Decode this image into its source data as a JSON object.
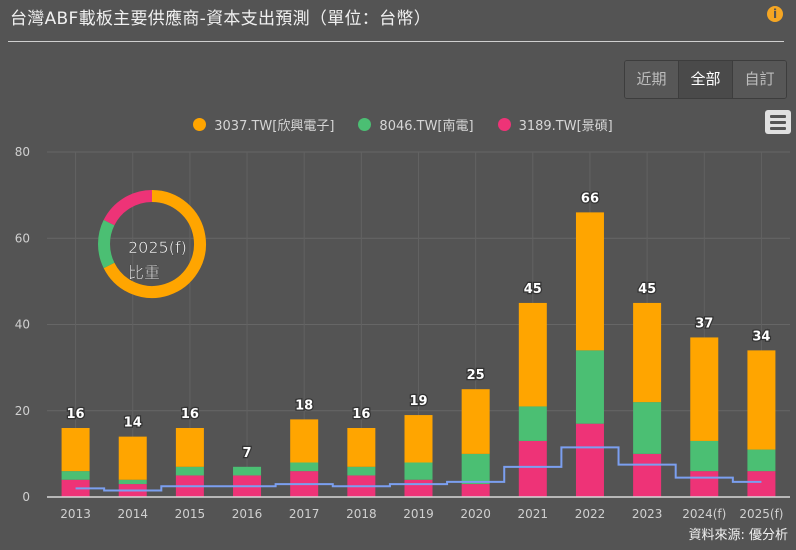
{
  "header": {
    "title": "台灣ABF載板主要供應商-資本支出預測（單位：台幣）",
    "info_icon": "info-icon"
  },
  "range_selector": {
    "buttons": [
      {
        "label": "近期",
        "active": false
      },
      {
        "label": "全部",
        "active": true
      },
      {
        "label": "自訂",
        "active": false
      }
    ]
  },
  "menu_icon": "hamburger-menu-icon",
  "source": "資料來源: 優分析",
  "colors": {
    "orange": "#FFA500",
    "green": "#4BBF73",
    "pink": "#EE3377",
    "line": "#7B9FF0"
  },
  "chart_data": {
    "type": "bar",
    "stacked": true,
    "title": "台灣ABF載板主要供應商-資本支出預測（單位：台幣）",
    "xlabel": "",
    "ylabel": "",
    "ylim": [
      0,
      80
    ],
    "yticks": [
      0,
      20,
      40,
      60,
      80
    ],
    "grid": true,
    "legend_position": "top-center",
    "categories": [
      "2013",
      "2014",
      "2015",
      "2016",
      "2017",
      "2018",
      "2019",
      "2020",
      "2021",
      "2022",
      "2023",
      "2024(f)",
      "2025(f)"
    ],
    "series": [
      {
        "name": "3189.TW[景碩]",
        "color": "#EE3377",
        "values": [
          4,
          3,
          5,
          5,
          6,
          5,
          4,
          3,
          13,
          17,
          10,
          6,
          6
        ]
      },
      {
        "name": "8046.TW[南電]",
        "color": "#4BBF73",
        "values": [
          2,
          1,
          2,
          2,
          2,
          2,
          4,
          7,
          8,
          17,
          12,
          7,
          5
        ]
      },
      {
        "name": "3037.TW[欣興電子]",
        "color": "#FFA500",
        "values": [
          10,
          10,
          9,
          0,
          10,
          9,
          11,
          15,
          24,
          32,
          23,
          24,
          23
        ]
      }
    ],
    "totals": [
      16,
      14,
      16,
      7,
      18,
      16,
      19,
      25,
      45,
      66,
      45,
      37,
      34
    ],
    "legend_order": [
      "3037.TW[欣興電子]",
      "8046.TW[南電]",
      "3189.TW[景碩]"
    ],
    "step_line": {
      "name": "step-line",
      "color": "#7B9FF0",
      "values": [
        2,
        1.5,
        2.5,
        2.5,
        3,
        2.5,
        3,
        3.5,
        7,
        11.5,
        7.5,
        4.5,
        3.5
      ]
    },
    "donut": {
      "label": "2025(f)\n比重",
      "label_line1": "2025(f)",
      "label_line2": "比重",
      "slices": [
        {
          "name": "3037.TW[欣興電子]",
          "value": 23,
          "color": "#FFA500"
        },
        {
          "name": "8046.TW[南電]",
          "value": 5,
          "color": "#4BBF73"
        },
        {
          "name": "3189.TW[景碩]",
          "value": 6,
          "color": "#EE3377"
        }
      ]
    }
  }
}
